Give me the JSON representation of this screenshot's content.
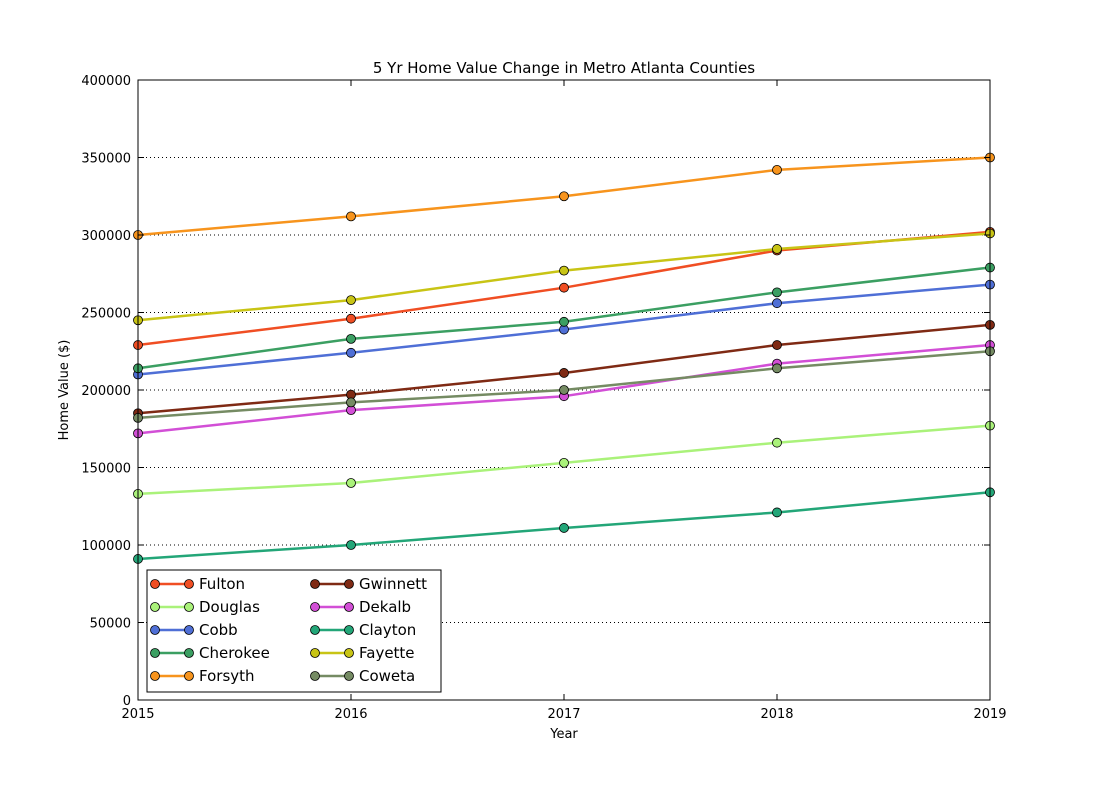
{
  "chart_data": {
    "type": "line",
    "title": "5 Yr Home Value Change in Metro Atlanta Counties",
    "xlabel": "Year",
    "ylabel": "Home Value ($)",
    "x": [
      2015,
      2016,
      2017,
      2018,
      2019
    ],
    "x_tick_labels": [
      "2015",
      "2016",
      "2017",
      "2018",
      "2019"
    ],
    "xlim": [
      2015,
      2019
    ],
    "ylim": [
      0,
      400000
    ],
    "y_ticks": [
      0,
      50000,
      100000,
      150000,
      200000,
      250000,
      300000,
      350000,
      400000
    ],
    "y_tick_labels": [
      "0",
      "50000",
      "100000",
      "150000",
      "200000",
      "250000",
      "300000",
      "350000",
      "400000"
    ],
    "grid": "y-dotted",
    "legend_position": "lower-left",
    "legend_columns": 2,
    "series": [
      {
        "name": "Fulton",
        "color": "#f04e23",
        "values": [
          229000,
          246000,
          266000,
          290000,
          302000
        ]
      },
      {
        "name": "Douglas",
        "color": "#aaf27a",
        "values": [
          133000,
          140000,
          153000,
          166000,
          177000
        ]
      },
      {
        "name": "Cobb",
        "color": "#4f6fd6",
        "values": [
          210000,
          224000,
          239000,
          256000,
          268000
        ]
      },
      {
        "name": "Cherokee",
        "color": "#3b9f62",
        "values": [
          214000,
          233000,
          244000,
          263000,
          279000
        ]
      },
      {
        "name": "Forsyth",
        "color": "#f7941d",
        "values": [
          300000,
          312000,
          325000,
          342000,
          350000
        ]
      },
      {
        "name": "Gwinnett",
        "color": "#7f2a14",
        "values": [
          185000,
          197000,
          211000,
          229000,
          242000
        ]
      },
      {
        "name": "Dekalb",
        "color": "#d24fd6",
        "values": [
          172000,
          187000,
          196000,
          217000,
          229000
        ]
      },
      {
        "name": "Clayton",
        "color": "#23a678",
        "values": [
          91000,
          100000,
          111000,
          121000,
          134000
        ]
      },
      {
        "name": "Fayette",
        "color": "#c8c415",
        "values": [
          245000,
          258000,
          277000,
          291000,
          301000
        ]
      },
      {
        "name": "Coweta",
        "color": "#758b63",
        "values": [
          182000,
          192000,
          200000,
          214000,
          225000
        ]
      }
    ]
  }
}
